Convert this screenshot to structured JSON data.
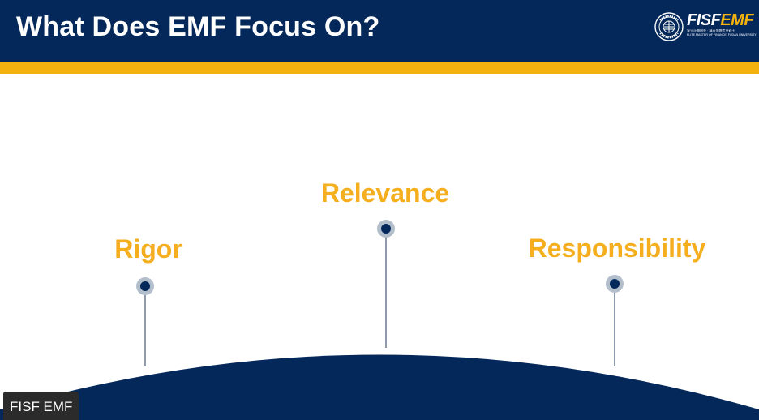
{
  "slide": {
    "title": "What Does EMF Focus On?"
  },
  "logo": {
    "brand_fisf": "FISF",
    "brand_emf": "EMF",
    "subtitle_cn": "复旦泛海国金 · 精英金融专业硕士",
    "subtitle_en": "ELITE MASTER OF FINANCE, FUDAN UNIVERSITY",
    "seal_icon": "university-seal-icon"
  },
  "pillars": [
    {
      "label": "Rigor"
    },
    {
      "label": "Relevance"
    },
    {
      "label": "Responsibility"
    }
  ],
  "caption": {
    "label": "FISF EMF"
  },
  "colors": {
    "header": "#05285a",
    "accent_gold": "#f4b20e",
    "label_gold": "#f4ae1e",
    "arc": "#05285a",
    "pin_ring": "#b3becc",
    "pin_dot": "#05285a",
    "stem": "#6a7a90"
  }
}
